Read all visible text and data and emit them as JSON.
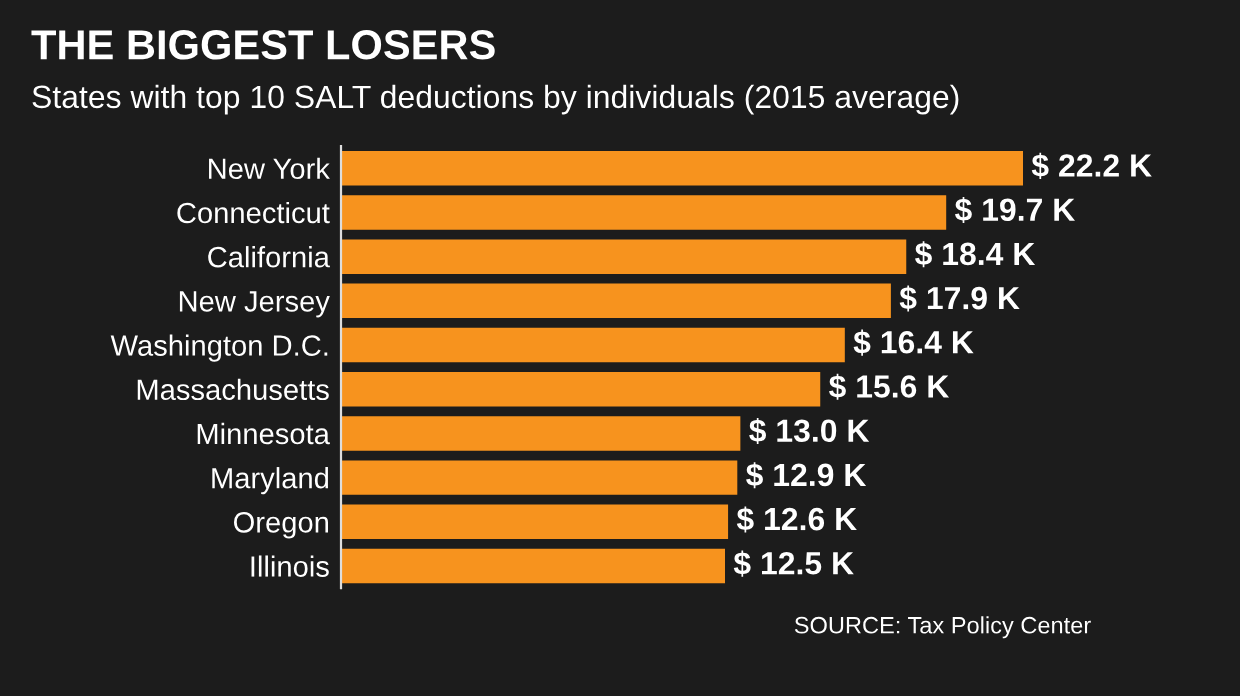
{
  "chart_data": {
    "type": "bar",
    "orientation": "horizontal",
    "title": "THE BIGGEST LOSERS",
    "subtitle": "States with top 10 SALT deductions by individuals (2015 average)",
    "categories": [
      "New York",
      "Connecticut",
      "California",
      "New Jersey",
      "Washington D.C.",
      "Massachusetts",
      "Minnesota",
      "Maryland",
      "Oregon",
      "Illinois"
    ],
    "values": [
      22.2,
      19.7,
      18.4,
      17.9,
      16.4,
      15.6,
      13.0,
      12.9,
      12.6,
      12.5
    ],
    "value_labels": [
      "$ 22.2 K",
      "$ 19.7 K",
      "$ 18.4 K",
      "$ 17.9 K",
      "$ 16.4 K",
      "$ 15.6 K",
      "$ 13.0 K",
      "$ 12.9 K",
      "$ 12.6 K",
      "$ 12.5 K"
    ],
    "color": "#f7931e",
    "tick_labels": "y",
    "grid": false,
    "legend": false,
    "annotations": [
      "SOURCE: Tax Policy Center"
    ]
  }
}
